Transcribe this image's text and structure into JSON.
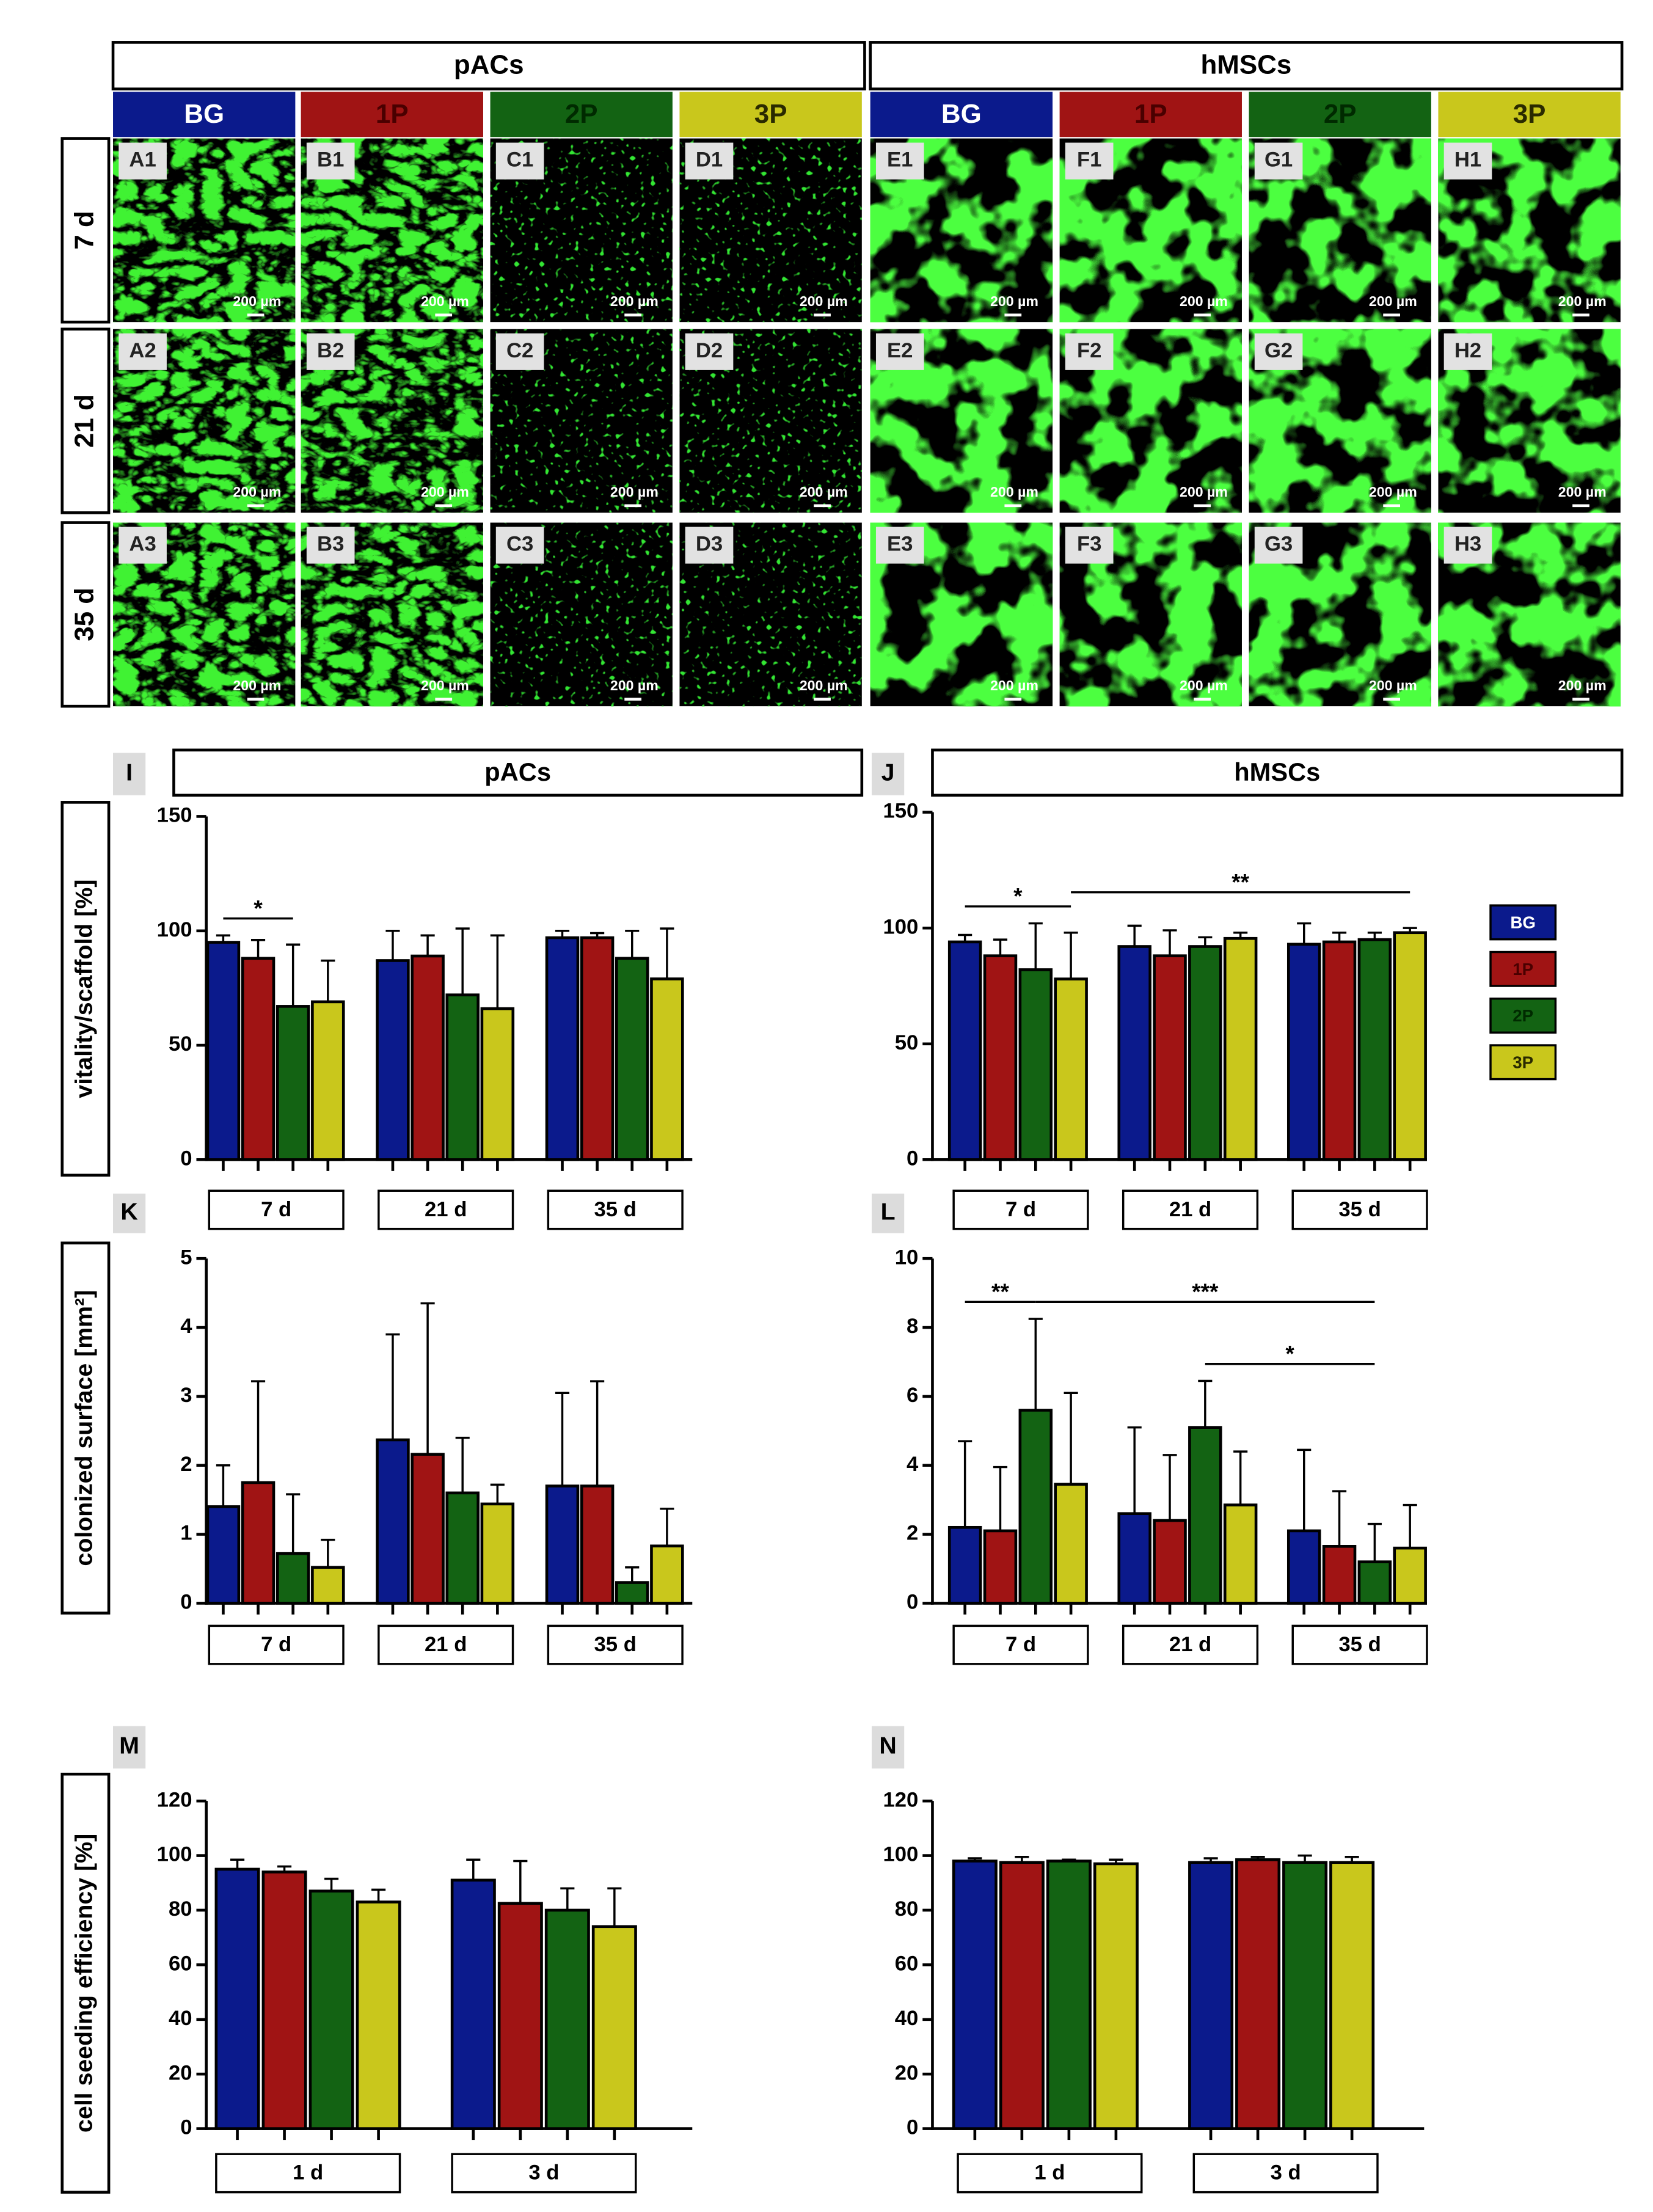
{
  "image_grid": {
    "groups": [
      "pACs",
      "hMSCs"
    ],
    "columns": [
      "BG",
      "1P",
      "2P",
      "3P",
      "BG",
      "1P",
      "2P",
      "3P"
    ],
    "column_colors": [
      "#0b1a8c",
      "#a01414",
      "#136313",
      "#c9c71c",
      "#0b1a8c",
      "#a01414",
      "#136313",
      "#c9c71c"
    ],
    "rows": [
      "7 d",
      "21 d",
      "35 d"
    ],
    "panels": [
      [
        "A1",
        "B1",
        "C1",
        "D1",
        "E1",
        "F1",
        "G1",
        "H1"
      ],
      [
        "A2",
        "B2",
        "C2",
        "D2",
        "E2",
        "F2",
        "G2",
        "H2"
      ],
      [
        "A3",
        "B3",
        "C3",
        "D3",
        "E3",
        "F3",
        "G3",
        "H3"
      ]
    ],
    "scale_bar": "200 µm"
  },
  "chart_data": [
    {
      "type": "bar",
      "panel": "I",
      "title": "pACs",
      "y_label": "vitality/scaffold [%]",
      "categories": [
        "7 d",
        "21 d",
        "35 d"
      ],
      "series": [
        {
          "color": "#0b1a8c",
          "values": [
            95,
            87,
            97
          ],
          "errors": [
            3,
            13,
            3
          ]
        },
        {
          "color": "#a01414",
          "values": [
            88,
            89,
            97
          ],
          "errors": [
            8,
            9,
            2
          ]
        },
        {
          "color": "#136313",
          "values": [
            67,
            72,
            88
          ],
          "errors": [
            27,
            29,
            12
          ]
        },
        {
          "color": "#c9c71c",
          "values": [
            69,
            66,
            79
          ],
          "errors": [
            18,
            32,
            22
          ]
        }
      ],
      "ylim": [
        0,
        150
      ],
      "yticks": [
        0,
        50,
        100,
        150
      ],
      "annotations": [
        {
          "text": "*",
          "from": [
            0,
            0
          ],
          "to": [
            0,
            2
          ]
        }
      ]
    },
    {
      "type": "bar",
      "panel": "J",
      "title": "hMSCs",
      "categories": [
        "7 d",
        "21 d",
        "35 d"
      ],
      "series": [
        {
          "name": "BG",
          "color": "#0b1a8c",
          "values": [
            94,
            92,
            93
          ],
          "errors": [
            3,
            9,
            9
          ]
        },
        {
          "name": "1P",
          "color": "#a01414",
          "values": [
            88,
            88,
            94
          ],
          "errors": [
            7,
            11,
            4
          ]
        },
        {
          "name": "2P",
          "color": "#136313",
          "values": [
            82,
            92,
            95
          ],
          "errors": [
            20,
            4,
            3
          ]
        },
        {
          "name": "3P",
          "color": "#c9c71c",
          "values": [
            78,
            95.5,
            98
          ],
          "errors": [
            20,
            2.5,
            2
          ]
        }
      ],
      "ylim": [
        0,
        150
      ],
      "yticks": [
        0,
        50,
        100,
        150
      ],
      "legend": "right",
      "annotations": [
        {
          "text": "*",
          "from": [
            0,
            0
          ],
          "to": [
            0,
            3
          ]
        },
        {
          "text": "**",
          "from": [
            0,
            3
          ],
          "to": [
            2,
            3
          ]
        }
      ]
    },
    {
      "type": "bar",
      "panel": "K",
      "y_label": "colonized surface [mm²]",
      "categories": [
        "7 d",
        "21 d",
        "35 d"
      ],
      "series": [
        {
          "color": "#0b1a8c",
          "values": [
            1.4,
            2.37,
            1.7
          ],
          "errors": [
            0.6,
            1.53,
            1.35
          ]
        },
        {
          "color": "#a01414",
          "values": [
            1.75,
            2.16,
            1.7
          ],
          "errors": [
            1.47,
            2.19,
            1.52
          ]
        },
        {
          "color": "#136313",
          "values": [
            0.72,
            1.6,
            0.3
          ],
          "errors": [
            0.86,
            0.8,
            0.22
          ]
        },
        {
          "color": "#c9c71c",
          "values": [
            0.52,
            1.44,
            0.83
          ],
          "errors": [
            0.4,
            0.28,
            0.54
          ]
        }
      ],
      "ylim": [
        0,
        5
      ],
      "yticks": [
        0,
        1,
        2,
        3,
        4,
        5
      ]
    },
    {
      "type": "bar",
      "panel": "L",
      "categories": [
        "7 d",
        "21 d",
        "35 d"
      ],
      "series": [
        {
          "color": "#0b1a8c",
          "values": [
            2.2,
            2.6,
            2.1
          ],
          "errors": [
            2.5,
            2.5,
            2.35
          ]
        },
        {
          "color": "#a01414",
          "values": [
            2.1,
            2.4,
            1.65
          ],
          "errors": [
            1.85,
            1.9,
            1.6
          ]
        },
        {
          "color": "#136313",
          "values": [
            5.6,
            5.1,
            1.2
          ],
          "errors": [
            2.65,
            1.35,
            1.1
          ]
        },
        {
          "color": "#c9c71c",
          "values": [
            3.45,
            2.85,
            1.6
          ],
          "errors": [
            2.65,
            1.55,
            1.25
          ]
        }
      ],
      "ylim": [
        0,
        10
      ],
      "yticks": [
        0,
        2,
        4,
        6,
        8,
        10
      ],
      "annotations": [
        {
          "text": "**",
          "from": [
            0,
            0
          ],
          "to": [
            0,
            2
          ]
        },
        {
          "text": "***",
          "from": [
            0,
            2
          ],
          "to": [
            2,
            2
          ]
        },
        {
          "text": "*",
          "from": [
            1,
            2
          ],
          "to": [
            2,
            2
          ]
        }
      ]
    },
    {
      "type": "bar",
      "panel": "M",
      "y_label": "cell seeding efficiency [%]",
      "categories": [
        "1 d",
        "3 d"
      ],
      "series": [
        {
          "color": "#0b1a8c",
          "values": [
            95,
            91
          ],
          "errors": [
            3.5,
            7.5
          ]
        },
        {
          "color": "#a01414",
          "values": [
            94,
            82.5
          ],
          "errors": [
            2,
            15.5
          ]
        },
        {
          "color": "#136313",
          "values": [
            87,
            80
          ],
          "errors": [
            4.5,
            8
          ]
        },
        {
          "color": "#c9c71c",
          "values": [
            83,
            74
          ],
          "errors": [
            4.5,
            14
          ]
        }
      ],
      "ylim": [
        0,
        120
      ],
      "yticks": [
        0,
        20,
        40,
        60,
        80,
        100,
        120
      ]
    },
    {
      "type": "bar",
      "panel": "N",
      "categories": [
        "1 d",
        "3 d"
      ],
      "series": [
        {
          "color": "#0b1a8c",
          "values": [
            98,
            97.5
          ],
          "errors": [
            1,
            1.5
          ]
        },
        {
          "color": "#a01414",
          "values": [
            97.5,
            98.5
          ],
          "errors": [
            2,
            1
          ]
        },
        {
          "color": "#136313",
          "values": [
            98,
            97.5
          ],
          "errors": [
            0.5,
            2.5
          ]
        },
        {
          "color": "#c9c71c",
          "values": [
            97,
            97.5
          ],
          "errors": [
            1.5,
            2
          ]
        }
      ],
      "ylim": [
        0,
        120
      ],
      "yticks": [
        0,
        20,
        40,
        60,
        80,
        100,
        120
      ]
    }
  ]
}
